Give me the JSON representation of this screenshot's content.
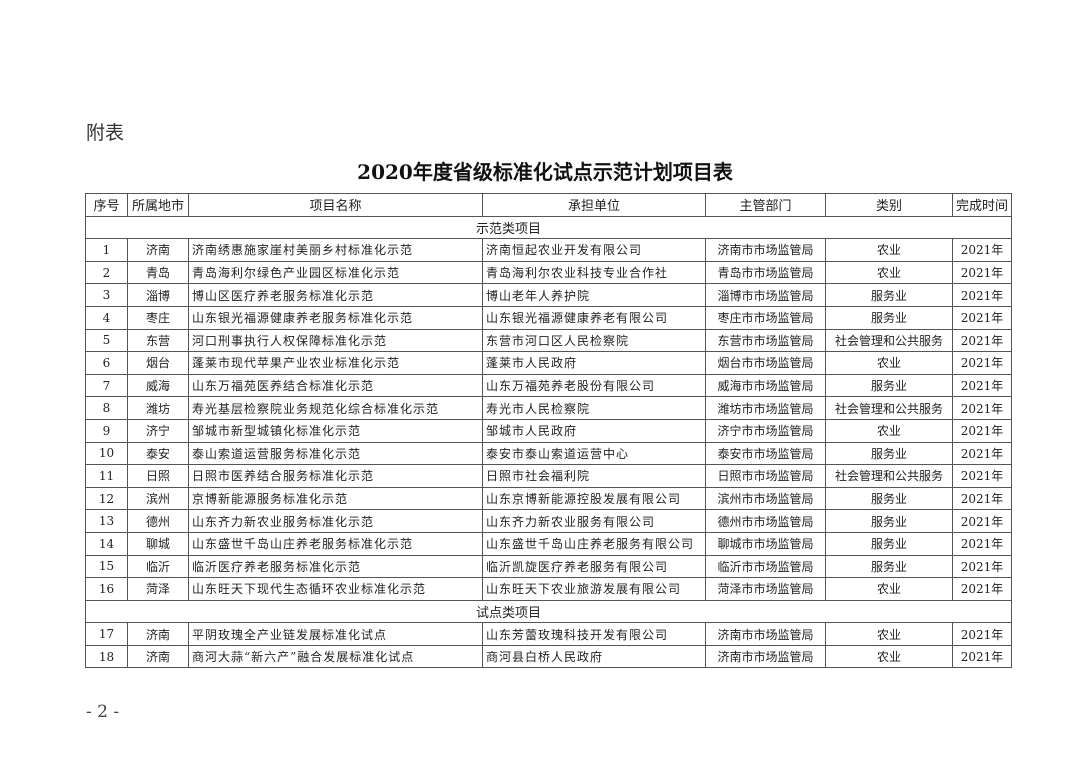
{
  "appendix_label": "附表",
  "title": "2020年度省级标准化试点示范计划项目表",
  "headers": [
    "序号",
    "所属地市",
    "项目名称",
    "承担单位",
    "主管部门",
    "类别",
    "完成时间"
  ],
  "sections": [
    {
      "label": "示范类项目",
      "rows": [
        [
          "1",
          "济南",
          "济南绣惠施家崖村美丽乡村标准化示范",
          "济南恒起农业开发有限公司",
          "济南市市场监管局",
          "农业",
          "2021年"
        ],
        [
          "2",
          "青岛",
          "青岛海利尔绿色产业园区标准化示范",
          "青岛海利尔农业科技专业合作社",
          "青岛市市场监管局",
          "农业",
          "2021年"
        ],
        [
          "3",
          "淄博",
          "博山区医疗养老服务标准化示范",
          "博山老年人养护院",
          "淄博市市场监管局",
          "服务业",
          "2021年"
        ],
        [
          "4",
          "枣庄",
          "山东银光福源健康养老服务标准化示范",
          "山东银光福源健康养老有限公司",
          "枣庄市市场监管局",
          "服务业",
          "2021年"
        ],
        [
          "5",
          "东营",
          "河口刑事执行人权保障标准化示范",
          "东营市河口区人民检察院",
          "东营市市场监管局",
          "社会管理和公共服务",
          "2021年"
        ],
        [
          "6",
          "烟台",
          "蓬莱市现代苹果产业农业标准化示范",
          "蓬莱市人民政府",
          "烟台市市场监管局",
          "农业",
          "2021年"
        ],
        [
          "7",
          "威海",
          "山东万福苑医养结合标准化示范",
          "山东万福苑养老股份有限公司",
          "威海市市场监管局",
          "服务业",
          "2021年"
        ],
        [
          "8",
          "潍坊",
          "寿光基层检察院业务规范化综合标准化示范",
          "寿光市人民检察院",
          "潍坊市市场监管局",
          "社会管理和公共服务",
          "2021年"
        ],
        [
          "9",
          "济宁",
          "邹城市新型城镇化标准化示范",
          "邹城市人民政府",
          "济宁市市场监管局",
          "农业",
          "2021年"
        ],
        [
          "10",
          "泰安",
          "泰山索道运营服务标准化示范",
          "泰安市泰山索道运营中心",
          "泰安市市场监管局",
          "服务业",
          "2021年"
        ],
        [
          "11",
          "日照",
          "日照市医养结合服务标准化示范",
          "日照市社会福利院",
          "日照市市场监管局",
          "社会管理和公共服务",
          "2021年"
        ],
        [
          "12",
          "滨州",
          "京博新能源服务标准化示范",
          "山东京博新能源控股发展有限公司",
          "滨州市市场监管局",
          "服务业",
          "2021年"
        ],
        [
          "13",
          "德州",
          "山东齐力新农业服务标准化示范",
          "山东齐力新农业服务有限公司",
          "德州市市场监管局",
          "服务业",
          "2021年"
        ],
        [
          "14",
          "聊城",
          "山东盛世千岛山庄养老服务标准化示范",
          "山东盛世千岛山庄养老服务有限公司",
          "聊城市市场监管局",
          "服务业",
          "2021年"
        ],
        [
          "15",
          "临沂",
          "临沂医疗养老服务标准化示范",
          "临沂凯旋医疗养老服务有限公司",
          "临沂市市场监管局",
          "服务业",
          "2021年"
        ],
        [
          "16",
          "菏泽",
          "山东旺天下现代生态循环农业标准化示范",
          "山东旺天下农业旅游发展有限公司",
          "菏泽市市场监管局",
          "农业",
          "2021年"
        ]
      ]
    },
    {
      "label": "试点类项目",
      "rows": [
        [
          "17",
          "济南",
          "平阴玫瑰全产业链发展标准化试点",
          "山东芳蕾玫瑰科技开发有限公司",
          "济南市市场监管局",
          "农业",
          "2021年"
        ],
        [
          "18",
          "济南",
          "商河大蒜“新六产”融合发展标准化试点",
          "商河县白桥人民政府",
          "济南市市场监管局",
          "农业",
          "2021年"
        ]
      ]
    }
  ],
  "page_number": "- 2 -"
}
